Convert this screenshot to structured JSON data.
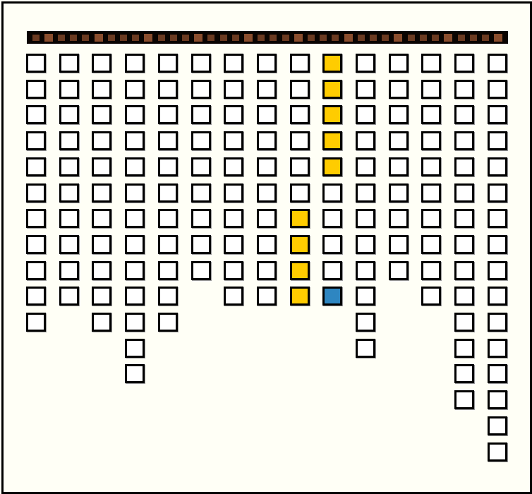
{
  "game": {
    "colors": {
      "background": "#fffff6",
      "empty": "#ffffff",
      "yellow": "#ffcc00",
      "blue": "#2e86c1",
      "bar": "#0a0402",
      "bar_segment": "#6b3a22"
    },
    "columns": [
      {
        "cells": [
          "empty",
          "empty",
          "empty",
          "empty",
          "empty",
          "empty",
          "empty",
          "empty",
          "empty",
          "empty",
          "empty"
        ]
      },
      {
        "cells": [
          "empty",
          "empty",
          "empty",
          "empty",
          "empty",
          "empty",
          "empty",
          "empty",
          "empty",
          "empty"
        ]
      },
      {
        "cells": [
          "empty",
          "empty",
          "empty",
          "empty",
          "empty",
          "empty",
          "empty",
          "empty",
          "empty",
          "empty",
          "empty"
        ]
      },
      {
        "cells": [
          "empty",
          "empty",
          "empty",
          "empty",
          "empty",
          "empty",
          "empty",
          "empty",
          "empty",
          "empty",
          "empty",
          "empty",
          "empty"
        ]
      },
      {
        "cells": [
          "empty",
          "empty",
          "empty",
          "empty",
          "empty",
          "empty",
          "empty",
          "empty",
          "empty",
          "empty",
          "empty"
        ]
      },
      {
        "cells": [
          "empty",
          "empty",
          "empty",
          "empty",
          "empty",
          "empty",
          "empty",
          "empty",
          "empty"
        ]
      },
      {
        "cells": [
          "empty",
          "empty",
          "empty",
          "empty",
          "empty",
          "empty",
          "empty",
          "empty",
          "empty",
          "empty"
        ]
      },
      {
        "cells": [
          "empty",
          "empty",
          "empty",
          "empty",
          "empty",
          "empty",
          "empty",
          "empty",
          "empty",
          "empty"
        ]
      },
      {
        "cells": [
          "empty",
          "empty",
          "empty",
          "empty",
          "empty",
          "empty",
          "yellow",
          "yellow",
          "yellow",
          "yellow"
        ]
      },
      {
        "cells": [
          "yellow",
          "yellow",
          "yellow",
          "yellow",
          "yellow",
          "empty",
          "empty",
          "empty",
          "empty",
          "blue"
        ]
      },
      {
        "cells": [
          "empty",
          "empty",
          "empty",
          "empty",
          "empty",
          "empty",
          "empty",
          "empty",
          "empty",
          "empty",
          "empty",
          "empty"
        ]
      },
      {
        "cells": [
          "empty",
          "empty",
          "empty",
          "empty",
          "empty",
          "empty",
          "empty",
          "empty",
          "empty"
        ]
      },
      {
        "cells": [
          "empty",
          "empty",
          "empty",
          "empty",
          "empty",
          "empty",
          "empty",
          "empty",
          "empty",
          "empty"
        ]
      },
      {
        "cells": [
          "empty",
          "empty",
          "empty",
          "empty",
          "empty",
          "empty",
          "empty",
          "empty",
          "empty",
          "empty",
          "empty",
          "empty",
          "empty",
          "empty"
        ]
      },
      {
        "cells": [
          "empty",
          "empty",
          "empty",
          "empty",
          "empty",
          "empty",
          "empty",
          "empty",
          "empty",
          "empty",
          "empty",
          "empty",
          "empty",
          "empty",
          "empty",
          "empty"
        ]
      }
    ]
  }
}
